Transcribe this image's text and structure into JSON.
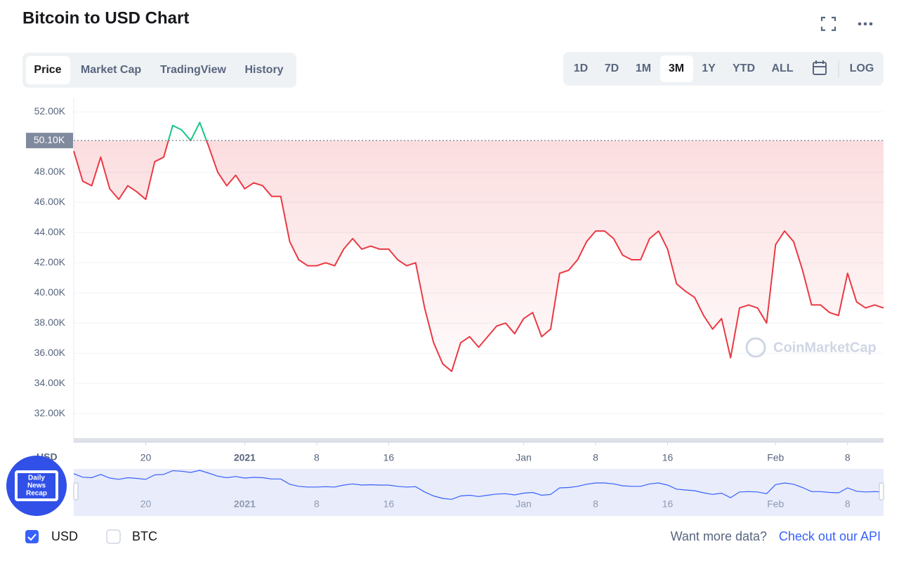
{
  "header": {
    "title": "Bitcoin to USD Chart"
  },
  "tabs": [
    "Price",
    "Market Cap",
    "TradingView",
    "History"
  ],
  "ranges": [
    "1D",
    "7D",
    "1M",
    "3M",
    "1Y",
    "YTD",
    "ALL"
  ],
  "log_button": "LOG",
  "watermark": "CoinMarketCap",
  "badge": [
    "Daily",
    "News",
    "Recap"
  ],
  "footer": {
    "currencies": [
      "USD",
      "BTC"
    ],
    "more_data": "Want more data?",
    "api_link": "Check out our API"
  },
  "chart_data": {
    "type": "line",
    "y_label": "USD",
    "x": [
      0,
      1,
      2,
      3,
      4,
      5,
      6,
      7,
      8,
      9,
      10,
      11,
      12,
      13,
      14,
      15,
      16,
      17,
      18,
      19,
      20,
      21,
      22,
      23,
      24,
      25,
      26,
      27,
      28,
      29,
      30,
      31,
      32,
      33,
      34,
      35,
      36,
      37,
      38,
      39,
      40,
      41,
      42,
      43,
      44,
      45,
      46,
      47,
      48,
      49,
      50,
      51,
      52,
      53,
      54,
      55,
      56,
      57,
      58,
      59,
      60,
      61,
      62,
      63,
      64,
      65,
      66,
      67,
      68,
      69,
      70,
      71,
      72,
      73,
      74,
      75,
      76,
      77,
      78,
      79,
      80,
      81,
      82,
      83,
      84,
      85,
      86,
      87,
      88,
      89,
      90
    ],
    "series": [
      {
        "name": "USD",
        "color": "#ea3943",
        "up_color": "#16c784",
        "values": [
          49.4,
          47.4,
          47.1,
          49,
          46.9,
          46.2,
          47.1,
          46.7,
          46.2,
          48.7,
          49,
          51.1,
          50.8,
          50.1,
          51.3,
          49.7,
          48,
          47.1,
          47.8,
          46.9,
          47.3,
          47.1,
          46.4,
          46.4,
          43.4,
          42.2,
          41.8,
          41.8,
          42,
          41.8,
          42.9,
          43.6,
          42.9,
          43.1,
          42.9,
          42.9,
          42.2,
          41.8,
          42,
          39,
          36.7,
          35.3,
          34.8,
          36.7,
          37.1,
          36.4,
          37.1,
          37.8,
          38,
          37.3,
          38.3,
          38.7,
          37.1,
          37.6,
          41.3,
          41.5,
          42.2,
          43.4,
          44.1,
          44.1,
          43.6,
          42.5,
          42.2,
          42.2,
          43.6,
          44.1,
          42.9,
          40.6,
          40.1,
          39.7,
          38.5,
          37.6,
          38.3,
          35.7,
          39,
          39.2,
          39,
          38,
          43.2,
          44.1,
          43.4,
          41.5,
          39.2,
          39.2,
          38.7,
          38.5,
          41.3,
          39.4,
          39,
          39.2,
          39
        ]
      }
    ],
    "reference": {
      "value": 50.1,
      "label": "50.10K"
    },
    "xlim": [
      0,
      90
    ],
    "xticks": [
      {
        "value": 8,
        "label": "20"
      },
      {
        "value": 19,
        "label": "2021"
      },
      {
        "value": 27,
        "label": "8"
      },
      {
        "value": 35,
        "label": "16"
      },
      {
        "value": 50,
        "label": "Jan"
      },
      {
        "value": 58,
        "label": "8"
      },
      {
        "value": 66,
        "label": "16"
      },
      {
        "value": 78,
        "label": "Feb"
      },
      {
        "value": 86,
        "label": "8"
      }
    ],
    "ylim": [
      30.1,
      52.9
    ],
    "yticks": [
      {
        "value": 32,
        "label": "32.00K"
      },
      {
        "value": 34,
        "label": "34.00K"
      },
      {
        "value": 36,
        "label": "36.00K"
      },
      {
        "value": 38,
        "label": "38.00K"
      },
      {
        "value": 40,
        "label": "40.00K"
      },
      {
        "value": 42,
        "label": "42.00K"
      },
      {
        "value": 44,
        "label": "44.00K"
      },
      {
        "value": 46,
        "label": "46.00K"
      },
      {
        "value": 48,
        "label": "48.00K"
      },
      {
        "value": 52,
        "label": "52.00K"
      }
    ],
    "grid": true
  }
}
